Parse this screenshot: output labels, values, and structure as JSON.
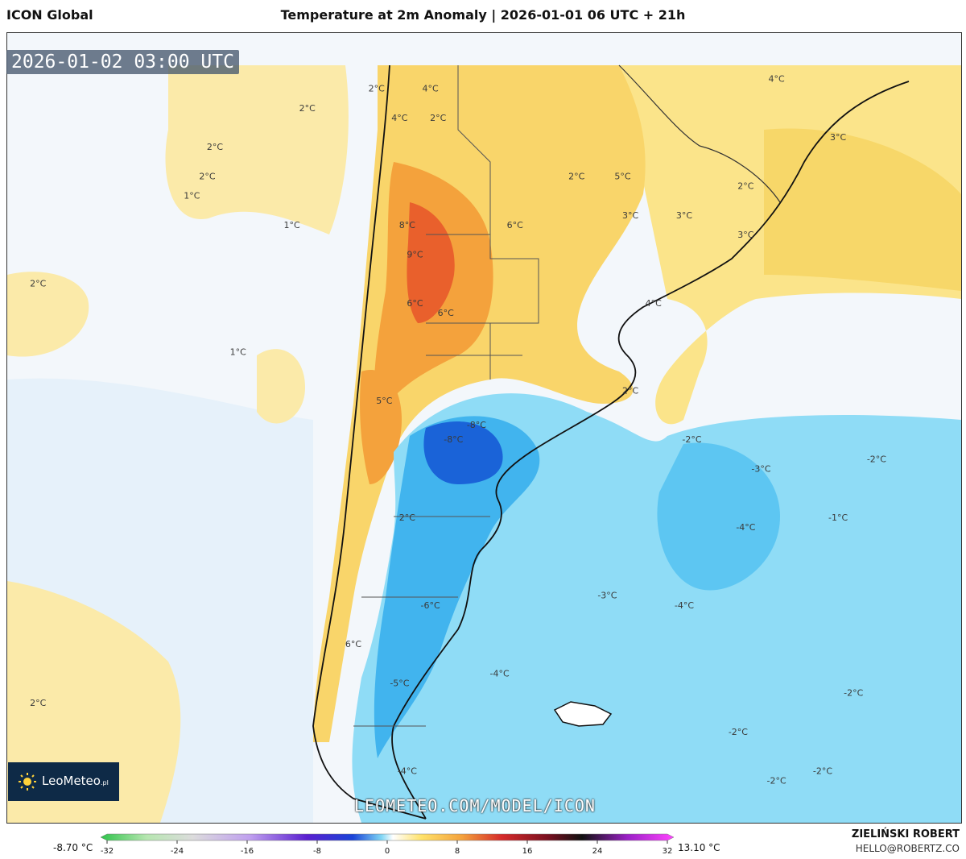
{
  "header": {
    "model": "ICON Global",
    "title": "Temperature at 2m Anomaly | 2026-01-01 06 UTC + 21h"
  },
  "valid_time": "2026-01-02 03:00 UTC",
  "logo": {
    "text": "LeoMeteo",
    "suffix": ".pl"
  },
  "watermark": "LEOMETEO.COM/MODEL/ICON",
  "footer": {
    "author": "ZIELIŃSKI ROBERT",
    "email": "HELLO@ROBERTZ.CO",
    "min_label": "-8.70 °C",
    "max_label": "13.10 °C"
  },
  "colorbar": {
    "ticks": [
      "-32",
      "-24",
      "-16",
      "-8",
      "0",
      "8",
      "16",
      "24",
      "32"
    ],
    "min": -32,
    "max": 32
  },
  "labels": [
    {
      "text": "2°C",
      "lon": -72.5,
      "lat": -13
    },
    {
      "text": "2°C",
      "lon": -78.5,
      "lat": -17
    },
    {
      "text": "2°C",
      "lon": -79,
      "lat": -20
    },
    {
      "text": "1°C",
      "lon": -80,
      "lat": -22
    },
    {
      "text": "1°C",
      "lon": -73.5,
      "lat": -25
    },
    {
      "text": "2°C",
      "lon": -90,
      "lat": -31
    },
    {
      "text": "1°C",
      "lon": -77,
      "lat": -38
    },
    {
      "text": "2°C",
      "lon": -90,
      "lat": -74
    },
    {
      "text": "2°C",
      "lon": -68,
      "lat": -11
    },
    {
      "text": "4°C",
      "lon": -64.5,
      "lat": -11
    },
    {
      "text": "2°C",
      "lon": -64,
      "lat": -14
    },
    {
      "text": "4°C",
      "lon": -66.5,
      "lat": -14
    },
    {
      "text": "8°C",
      "lon": -66,
      "lat": -25
    },
    {
      "text": "9°C",
      "lon": -65.5,
      "lat": -28
    },
    {
      "text": "6°C",
      "lon": -65.5,
      "lat": -33
    },
    {
      "text": "6°C",
      "lon": -63.5,
      "lat": -34
    },
    {
      "text": "6°C",
      "lon": -59,
      "lat": -25
    },
    {
      "text": "5°C",
      "lon": -52,
      "lat": -20
    },
    {
      "text": "5°C",
      "lon": -67.5,
      "lat": -43
    },
    {
      "text": "2°C",
      "lon": -66,
      "lat": -55
    },
    {
      "text": "6°C",
      "lon": -69.5,
      "lat": -68
    },
    {
      "text": "4°C",
      "lon": -42,
      "lat": -10
    },
    {
      "text": "2°C",
      "lon": -38,
      "lat": -5
    },
    {
      "text": "3°C",
      "lon": -38,
      "lat": -16
    },
    {
      "text": "2°C",
      "lon": -44,
      "lat": -21
    },
    {
      "text": "2°C",
      "lon": -55,
      "lat": -20
    },
    {
      "text": "3°C",
      "lon": -51.5,
      "lat": -24
    },
    {
      "text": "3°C",
      "lon": -48,
      "lat": -24
    },
    {
      "text": "3°C",
      "lon": -44,
      "lat": -26
    },
    {
      "text": "4°C",
      "lon": -50,
      "lat": -33
    },
    {
      "text": "2°C",
      "lon": -51.5,
      "lat": -42
    },
    {
      "text": "-8°C",
      "lon": -61.5,
      "lat": -45.5
    },
    {
      "text": "-8°C",
      "lon": -63,
      "lat": -47
    },
    {
      "text": "-6°C",
      "lon": -64.5,
      "lat": -64
    },
    {
      "text": "-5°C",
      "lon": -66.5,
      "lat": -72
    },
    {
      "text": "-4°C",
      "lon": -66,
      "lat": -81
    },
    {
      "text": "-4°C",
      "lon": -60,
      "lat": -71
    },
    {
      "text": "-3°C",
      "lon": -53,
      "lat": -63
    },
    {
      "text": "-2°C",
      "lon": -47.5,
      "lat": -47
    },
    {
      "text": "-3°C",
      "lon": -43,
      "lat": -50
    },
    {
      "text": "-4°C",
      "lon": -44,
      "lat": -56
    },
    {
      "text": "-4°C",
      "lon": -48,
      "lat": -64
    },
    {
      "text": "-2°C",
      "lon": -35.5,
      "lat": -49
    },
    {
      "text": "-1°C",
      "lon": -38,
      "lat": -55
    },
    {
      "text": "-2°C",
      "lon": -37,
      "lat": -73
    },
    {
      "text": "-2°C",
      "lon": -44.5,
      "lat": -77
    },
    {
      "text": "-2°C",
      "lon": -42,
      "lat": -82
    },
    {
      "text": "-2°C",
      "lon": -39,
      "lat": -81
    }
  ]
}
